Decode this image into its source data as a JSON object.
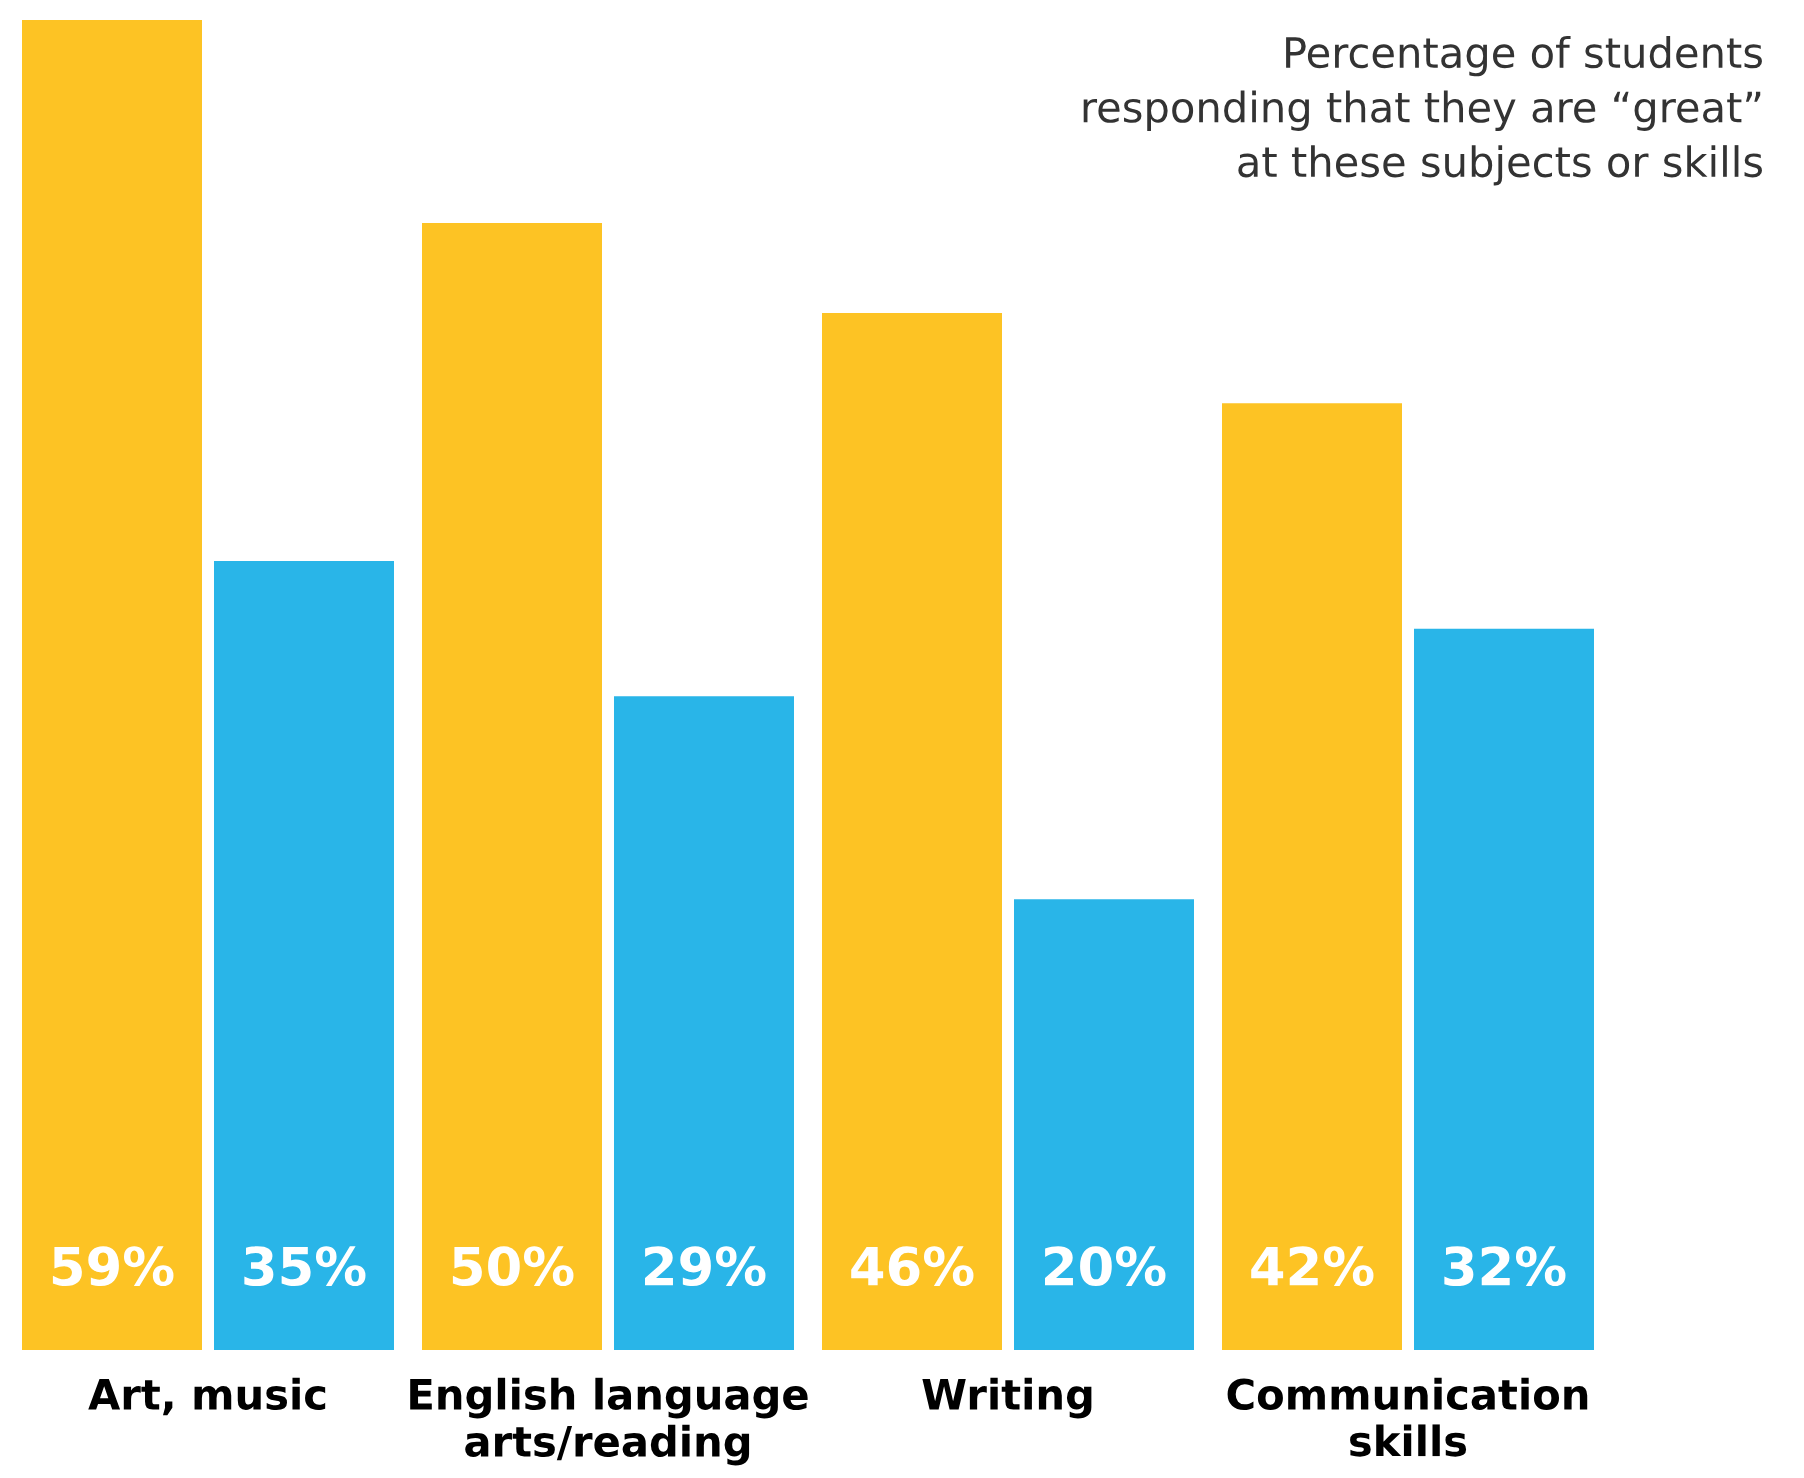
{
  "chart_data": {
    "type": "bar",
    "title": "Percentage of students\nresponding that they are “great”\nat these subjects or skills",
    "categories": [
      "Art, music",
      "English language\narts/reading",
      "Writing",
      "Communication\nskills"
    ],
    "series": [
      {
        "color": "#fdc324",
        "values": [
          59,
          50,
          46,
          42
        ],
        "value_labels": [
          "59%",
          "50%",
          "46%",
          "42%"
        ]
      },
      {
        "color": "#29b5e8",
        "values": [
          35,
          29,
          20,
          32
        ],
        "value_labels": [
          "35%",
          "29%",
          "20%",
          "32%"
        ]
      }
    ]
  }
}
